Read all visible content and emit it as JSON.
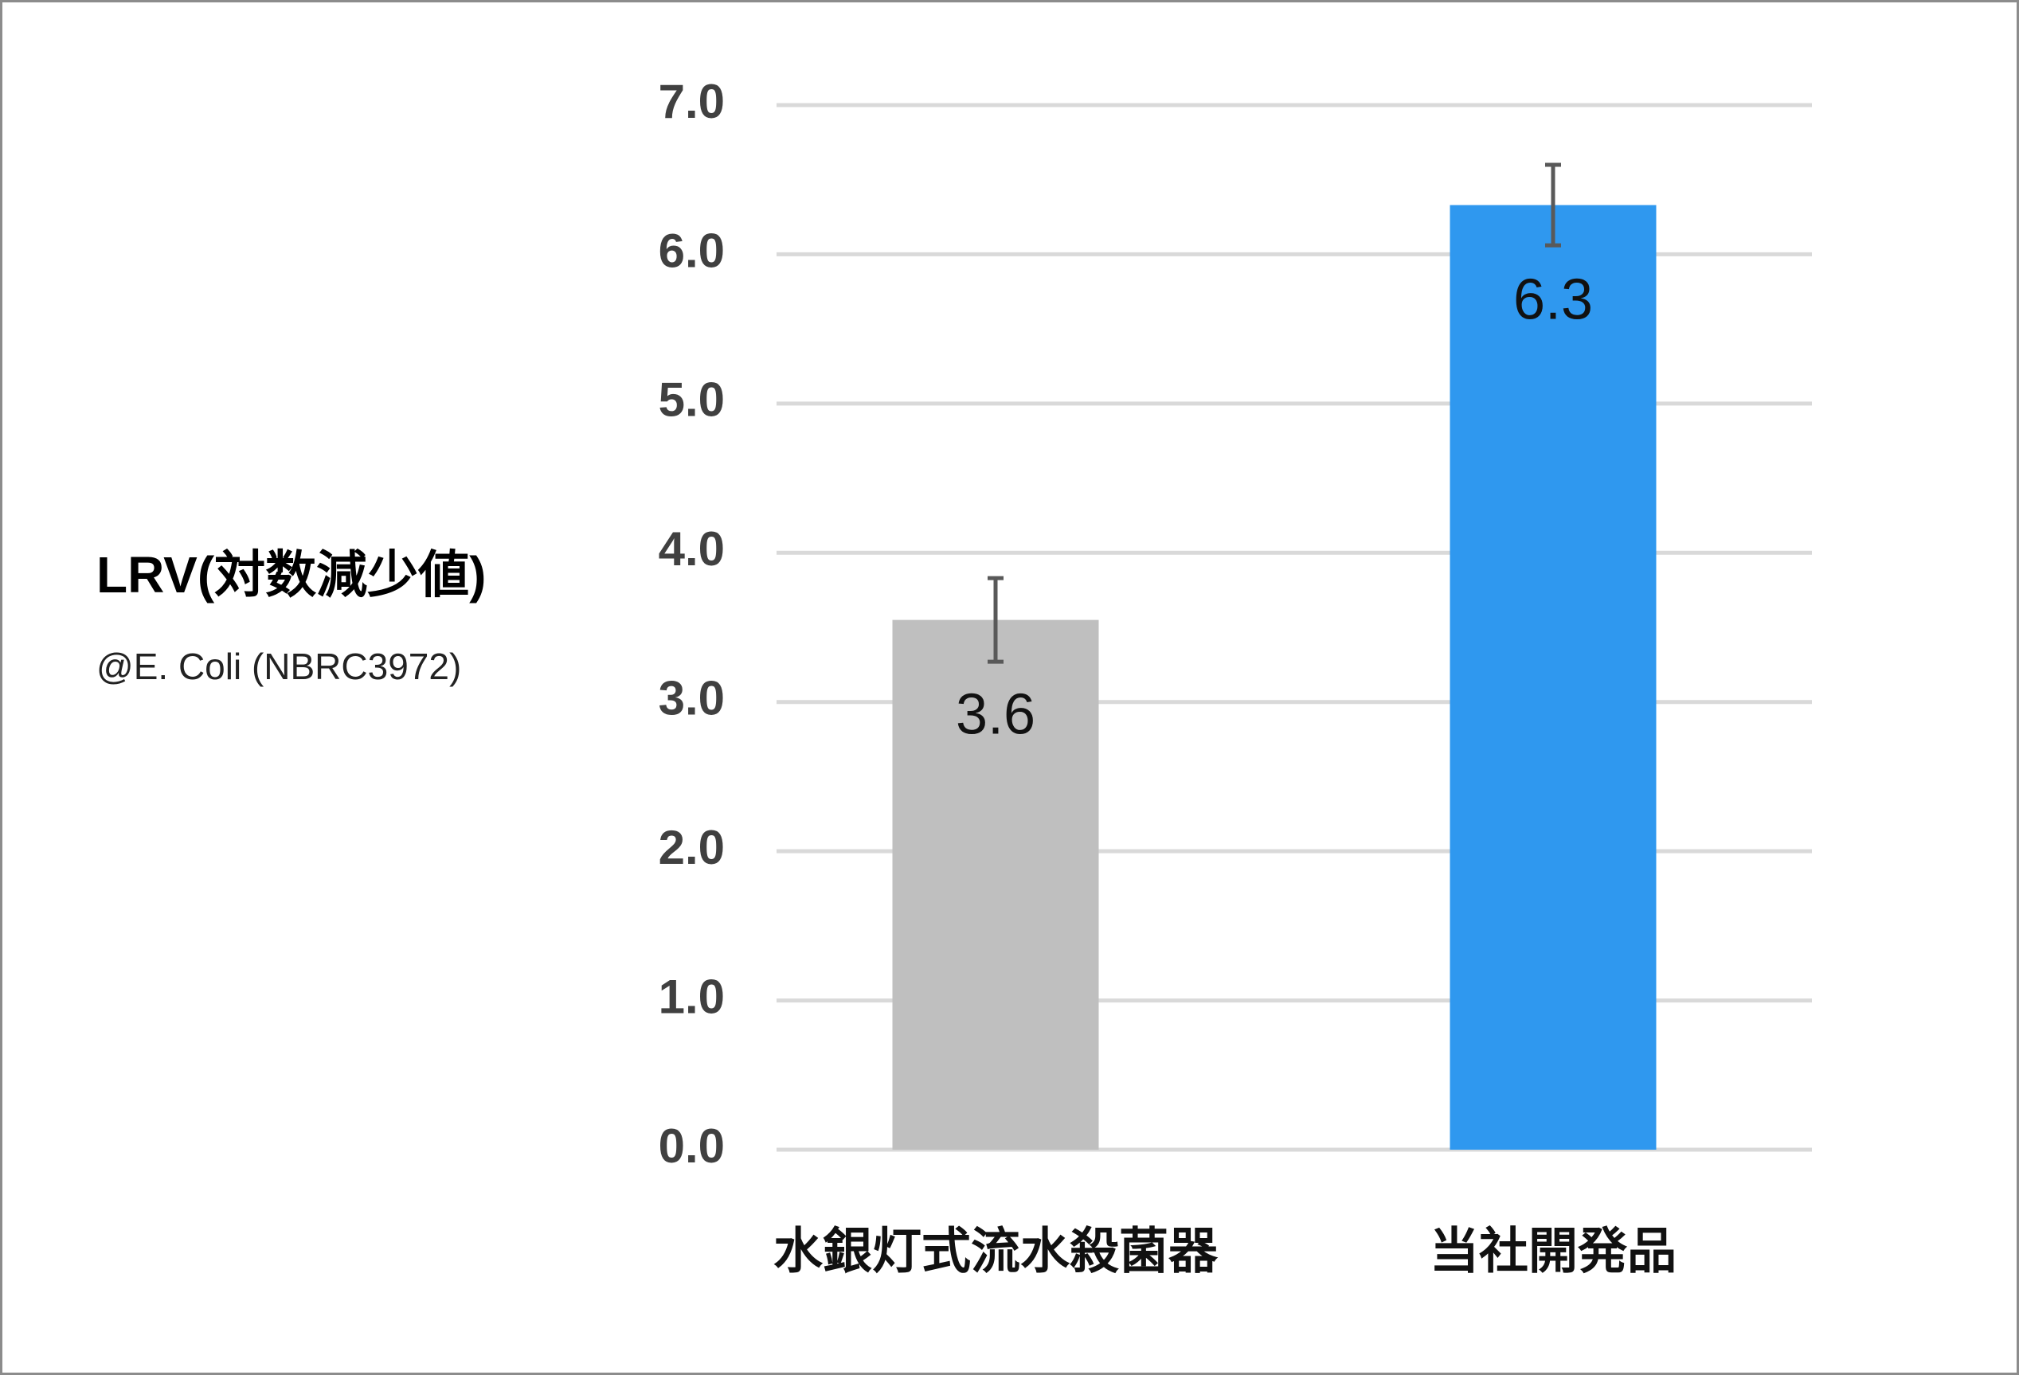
{
  "chart_data": {
    "type": "bar",
    "title": "LRV(対数減少値)",
    "subtitle": "@E. Coli (NBRC3972)",
    "categories": [
      "水銀灯式流水殺菌器",
      "当社開発品"
    ],
    "values": [
      3.55,
      6.33
    ],
    "value_labels": [
      "3.6",
      "6.3"
    ],
    "errors": [
      0.28,
      0.27
    ],
    "colors": [
      "#bfbfbf",
      "#2f98ef"
    ],
    "ylim": [
      0,
      7
    ],
    "yticks": [
      {
        "value": 0,
        "label": "0.0"
      },
      {
        "value": 1,
        "label": "1.0"
      },
      {
        "value": 2,
        "label": "2.0"
      },
      {
        "value": 3,
        "label": "3.0"
      },
      {
        "value": 4,
        "label": "4.0"
      },
      {
        "value": 5,
        "label": "5.0"
      },
      {
        "value": 6,
        "label": "6.0"
      },
      {
        "value": 7,
        "label": "7.0"
      }
    ],
    "grid": true
  }
}
